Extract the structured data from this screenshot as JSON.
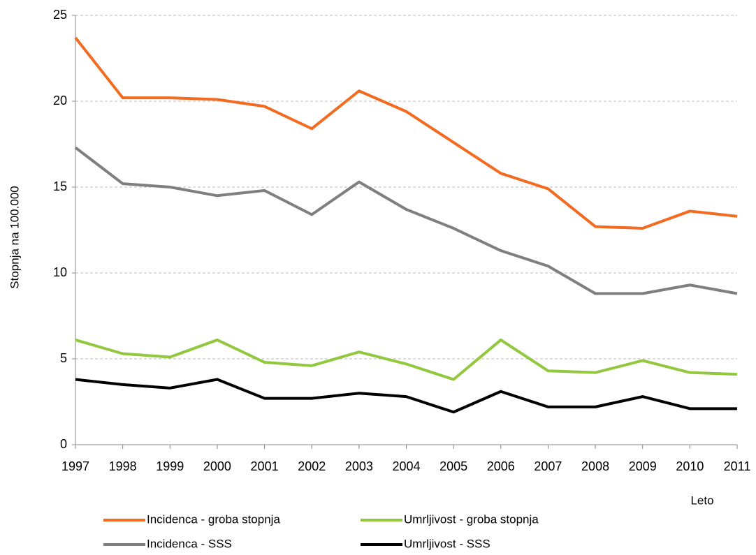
{
  "chart_data": {
    "type": "line",
    "x_label": "Leto",
    "y_label": "Stopnja na 100.000",
    "categories": [
      "1997",
      "1998",
      "1999",
      "2000",
      "2001",
      "2002",
      "2003",
      "2004",
      "2005",
      "2006",
      "2007",
      "2008",
      "2009",
      "2010",
      "2011"
    ],
    "series": [
      {
        "name": "Incidenca - groba stopnja",
        "color": "#f26b21",
        "values": [
          23.7,
          20.2,
          20.2,
          20.1,
          19.7,
          18.4,
          20.6,
          19.4,
          17.6,
          15.8,
          14.9,
          12.7,
          12.6,
          13.6,
          13.3
        ]
      },
      {
        "name": "Umrljivost - groba stopnja",
        "color": "#92c83e",
        "values": [
          6.1,
          5.3,
          5.1,
          6.1,
          4.8,
          4.6,
          5.4,
          4.7,
          3.8,
          6.1,
          4.3,
          4.2,
          4.9,
          4.2,
          4.1
        ]
      },
      {
        "name": "Incidenca - SSS",
        "color": "#7f7f7f",
        "values": [
          17.3,
          15.2,
          15.0,
          14.5,
          14.8,
          13.4,
          15.3,
          13.7,
          12.6,
          11.3,
          10.4,
          8.8,
          8.8,
          9.3,
          8.8
        ]
      },
      {
        "name": "Umrljivost - SSS",
        "color": "#000000",
        "values": [
          3.8,
          3.5,
          3.3,
          3.8,
          2.7,
          2.7,
          3.0,
          2.8,
          1.9,
          3.1,
          2.2,
          2.2,
          2.8,
          2.1,
          2.1
        ]
      }
    ],
    "ylim": [
      0,
      25
    ],
    "yticks": [
      0,
      5,
      10,
      15,
      20,
      25
    ],
    "grid": true
  }
}
